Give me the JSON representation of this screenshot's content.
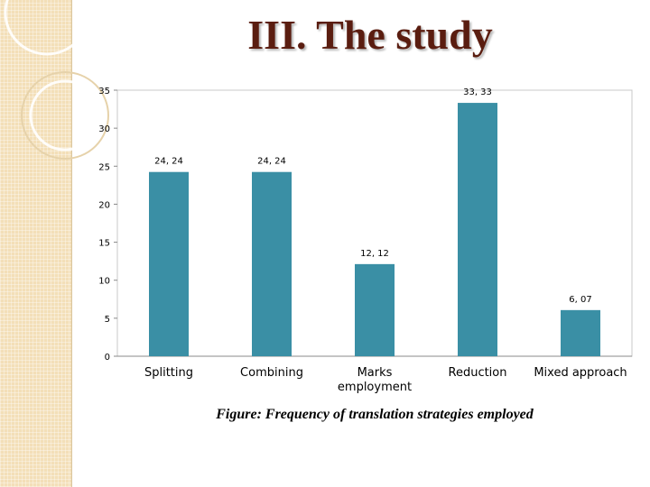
{
  "slide": {
    "title": "III. The study",
    "caption": "Figure: Frequency of translation strategies employed"
  },
  "colors": {
    "bar": "#3a8fa5",
    "title": "#5a1d10",
    "strip": "#f3dfb8"
  },
  "chart_data": {
    "type": "bar",
    "categories": [
      [
        "Splitting"
      ],
      [
        "Combining"
      ],
      [
        "Marks",
        "employment"
      ],
      [
        "Reduction"
      ],
      [
        "Mixed approach"
      ]
    ],
    "values": [
      24.24,
      24.24,
      12.12,
      33.33,
      6.07
    ],
    "value_labels": [
      "24, 24",
      "24, 24",
      "12, 12",
      "33, 33",
      "6, 07"
    ],
    "yticks": [
      0,
      5,
      10,
      15,
      20,
      25,
      30,
      35
    ],
    "ylim": [
      0,
      35
    ],
    "grid": false,
    "legend": "none"
  }
}
